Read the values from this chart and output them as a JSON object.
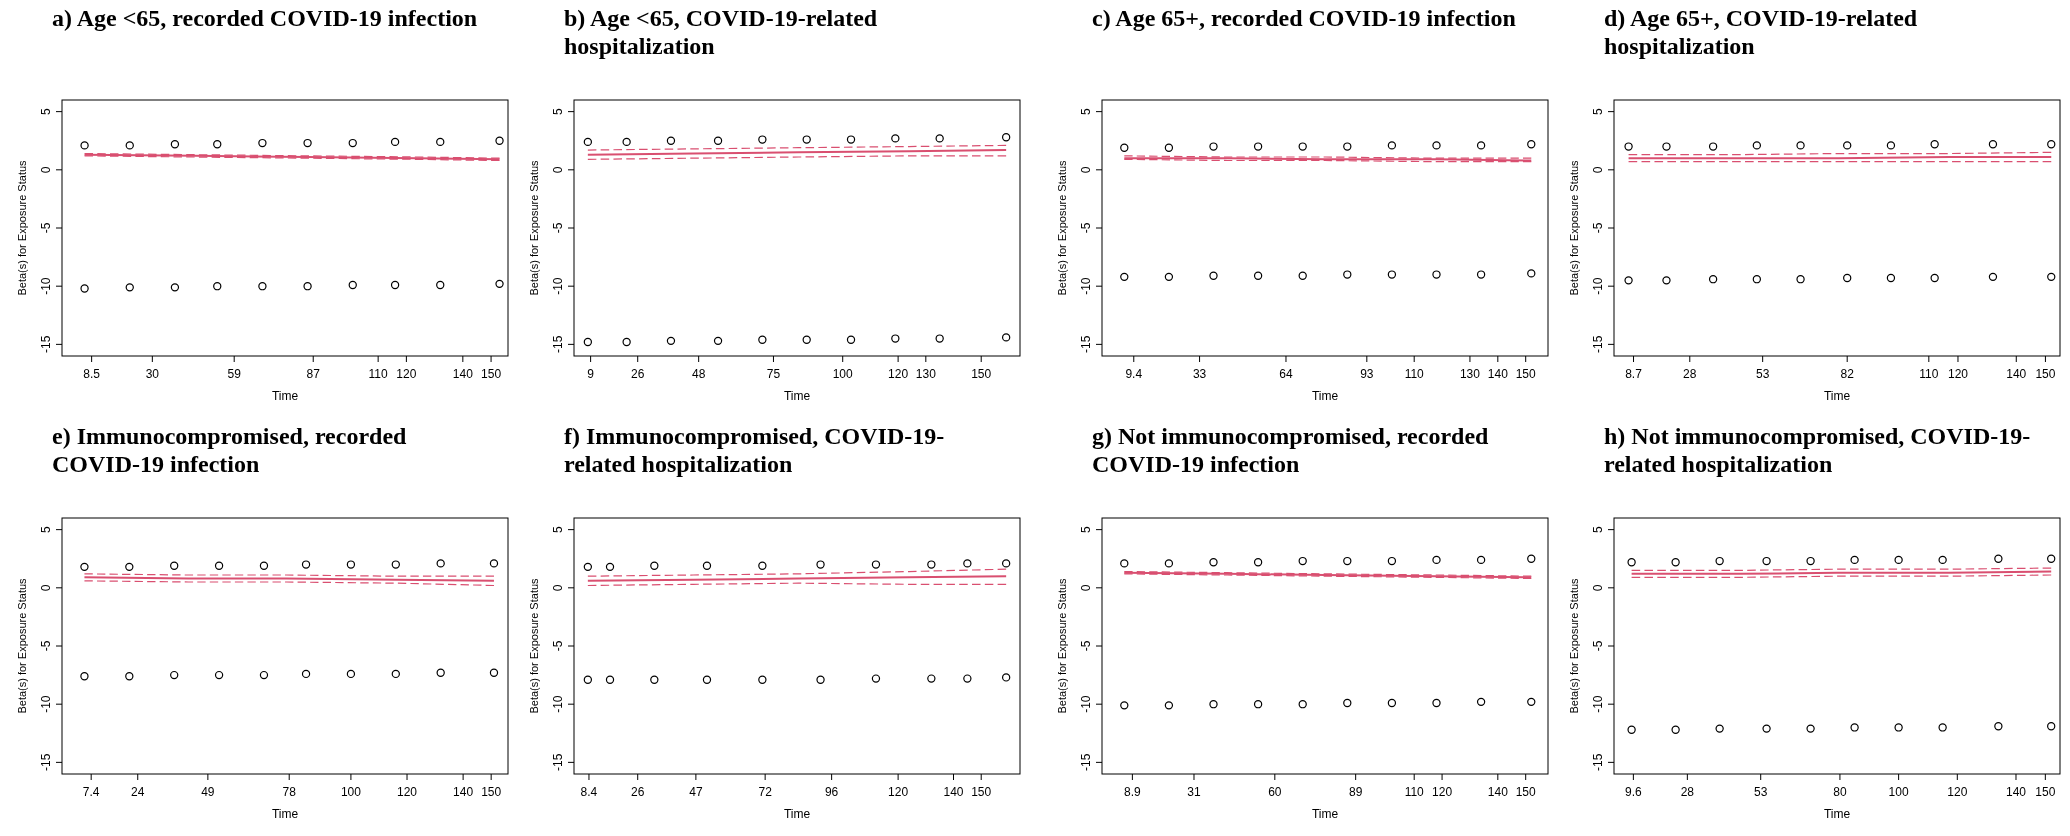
{
  "chart_data": [
    {
      "type": "scatter",
      "title": "a)  Age <65, recorded COVID-19 infection",
      "xlabel": "Time",
      "ylabel": "Beta(s) for Exposure Status",
      "xlim": [
        -2,
        156
      ],
      "ylim": [
        -16,
        6
      ],
      "yticks": [
        -15,
        -10,
        -5,
        0,
        5
      ],
      "marker": "circle",
      "xticks": [
        8.5,
        30,
        59,
        87,
        110,
        120,
        140,
        150
      ],
      "series": [
        {
          "color": "#000000",
          "x": [
            6,
            22,
            38,
            53,
            69,
            85,
            101,
            116,
            132,
            153
          ],
          "values": [
            2.1,
            2.1,
            2.2,
            2.2,
            2.3,
            2.3,
            2.3,
            2.4,
            2.4,
            2.5
          ]
        },
        {
          "color": "#000000",
          "x": [
            6,
            22,
            38,
            53,
            69,
            85,
            101,
            116,
            132,
            153
          ],
          "values": [
            -10.2,
            -10.1,
            -10.1,
            -10.0,
            -10.0,
            -10.0,
            -9.9,
            -9.9,
            -9.9,
            -9.8
          ]
        },
        {
          "type": "line",
          "color": "#d94f70",
          "line_style": "solid",
          "marker": "none",
          "x": [
            6,
            45,
            85,
            124,
            153
          ],
          "values": [
            1.3,
            1.2,
            1.1,
            1.0,
            0.9
          ]
        },
        {
          "type": "line",
          "color": "#d94f70",
          "line_style": "dashed",
          "marker": "none",
          "x": [
            6,
            45,
            85,
            124,
            153
          ],
          "values": [
            1.4,
            1.3,
            1.2,
            1.1,
            1.0
          ]
        },
        {
          "type": "line",
          "color": "#d94f70",
          "line_style": "dashed",
          "marker": "none",
          "x": [
            6,
            45,
            85,
            124,
            153
          ],
          "values": [
            1.2,
            1.1,
            1.0,
            0.9,
            0.8
          ]
        }
      ]
    },
    {
      "type": "scatter",
      "title": "b)  Age <65, COVID-19-related\nhospitalization",
      "xlabel": "Time",
      "ylabel": "Beta(s) for Exposure Status",
      "xlim": [
        3,
        164
      ],
      "ylim": [
        -16,
        6
      ],
      "yticks": [
        -15,
        -10,
        -5,
        0,
        5
      ],
      "marker": "circle",
      "xticks": [
        9,
        26,
        48,
        75,
        100,
        120,
        130,
        150
      ],
      "series": [
        {
          "color": "#000000",
          "x": [
            8,
            22,
            38,
            55,
            71,
            87,
            103,
            119,
            135,
            159
          ],
          "values": [
            2.4,
            2.4,
            2.5,
            2.5,
            2.6,
            2.6,
            2.6,
            2.7,
            2.7,
            2.8
          ]
        },
        {
          "color": "#000000",
          "x": [
            8,
            22,
            38,
            55,
            71,
            87,
            103,
            119,
            135,
            159
          ],
          "values": [
            -14.8,
            -14.8,
            -14.7,
            -14.7,
            -14.6,
            -14.6,
            -14.6,
            -14.5,
            -14.5,
            -14.4
          ]
        },
        {
          "type": "line",
          "color": "#d94f70",
          "line_style": "solid",
          "marker": "none",
          "x": [
            8,
            46,
            84,
            124,
            159
          ],
          "values": [
            1.3,
            1.4,
            1.5,
            1.6,
            1.7
          ]
        },
        {
          "type": "line",
          "color": "#d94f70",
          "line_style": "dashed",
          "marker": "none",
          "x": [
            8,
            46,
            84,
            124,
            159
          ],
          "values": [
            1.7,
            1.8,
            1.9,
            2.0,
            2.1
          ]
        },
        {
          "type": "line",
          "color": "#d94f70",
          "line_style": "dashed",
          "marker": "none",
          "x": [
            8,
            46,
            84,
            124,
            159
          ],
          "values": [
            0.9,
            1.0,
            1.1,
            1.2,
            1.2
          ]
        }
      ]
    },
    {
      "type": "scatter",
      "title": "c)  Age 65+, recorded COVID-19 infection",
      "xlabel": "Time",
      "ylabel": "Beta(s) for Exposure Status",
      "xlim": [
        -2,
        158
      ],
      "ylim": [
        -16,
        6
      ],
      "yticks": [
        -15,
        -10,
        -5,
        0,
        5
      ],
      "marker": "circle",
      "xticks": [
        9.4,
        33,
        64,
        93,
        110,
        130,
        140,
        150
      ],
      "series": [
        {
          "color": "#000000",
          "x": [
            6,
            22,
            38,
            54,
            70,
            86,
            102,
            118,
            134,
            152
          ],
          "values": [
            1.9,
            1.9,
            2.0,
            2.0,
            2.0,
            2.0,
            2.1,
            2.1,
            2.1,
            2.2
          ]
        },
        {
          "color": "#000000",
          "x": [
            6,
            22,
            38,
            54,
            70,
            86,
            102,
            118,
            134,
            152
          ],
          "values": [
            -9.2,
            -9.2,
            -9.1,
            -9.1,
            -9.1,
            -9.0,
            -9.0,
            -9.0,
            -9.0,
            -8.9
          ]
        },
        {
          "type": "line",
          "color": "#d94f70",
          "line_style": "solid",
          "marker": "none",
          "x": [
            6,
            43,
            78,
            118,
            152
          ],
          "values": [
            1.0,
            1.0,
            0.9,
            0.9,
            0.8
          ]
        },
        {
          "type": "line",
          "color": "#d94f70",
          "line_style": "dashed",
          "marker": "none",
          "x": [
            6,
            43,
            78,
            118,
            152
          ],
          "values": [
            1.2,
            1.1,
            1.1,
            1.0,
            1.0
          ]
        },
        {
          "type": "line",
          "color": "#d94f70",
          "line_style": "dashed",
          "marker": "none",
          "x": [
            6,
            43,
            78,
            118,
            152
          ],
          "values": [
            0.9,
            0.8,
            0.8,
            0.7,
            0.7
          ]
        }
      ]
    },
    {
      "type": "scatter",
      "title": "d)  Age 65+, COVID-19-related\nhospitalization",
      "xlabel": "Time",
      "ylabel": "Beta(s) for Exposure Status",
      "xlim": [
        2,
        155
      ],
      "ylim": [
        -16,
        6
      ],
      "yticks": [
        -15,
        -10,
        -5,
        0,
        5
      ],
      "marker": "circle",
      "xticks": [
        8.7,
        28,
        53,
        82,
        110,
        120,
        140,
        150
      ],
      "series": [
        {
          "color": "#000000",
          "x": [
            7,
            20,
            36,
            51,
            66,
            82,
            97,
            112,
            132,
            152
          ],
          "values": [
            2.0,
            2.0,
            2.0,
            2.1,
            2.1,
            2.1,
            2.1,
            2.2,
            2.2,
            2.2
          ]
        },
        {
          "color": "#000000",
          "x": [
            7,
            20,
            36,
            51,
            66,
            82,
            97,
            112,
            132,
            152
          ],
          "values": [
            -9.5,
            -9.5,
            -9.4,
            -9.4,
            -9.4,
            -9.3,
            -9.3,
            -9.3,
            -9.2,
            -9.2
          ]
        },
        {
          "type": "line",
          "color": "#d94f70",
          "line_style": "solid",
          "marker": "none",
          "x": [
            7,
            43,
            79,
            117,
            152
          ],
          "values": [
            1.0,
            1.0,
            1.0,
            1.1,
            1.1
          ]
        },
        {
          "type": "line",
          "color": "#d94f70",
          "line_style": "dashed",
          "marker": "none",
          "x": [
            7,
            43,
            79,
            117,
            152
          ],
          "values": [
            1.3,
            1.3,
            1.4,
            1.4,
            1.5
          ]
        },
        {
          "type": "line",
          "color": "#d94f70",
          "line_style": "dashed",
          "marker": "none",
          "x": [
            7,
            43,
            79,
            117,
            152
          ],
          "values": [
            0.7,
            0.7,
            0.7,
            0.7,
            0.7
          ]
        }
      ]
    },
    {
      "type": "scatter",
      "title": "e)  Immunocompromised, recorded\nCOVID-19 infection",
      "xlabel": "Time",
      "ylabel": "Beta(s) for Exposure Status",
      "xlim": [
        -3,
        156
      ],
      "ylim": [
        -16,
        6
      ],
      "yticks": [
        -15,
        -10,
        -5,
        0,
        5
      ],
      "marker": "circle",
      "xticks": [
        7.4,
        24,
        49,
        78,
        100,
        120,
        140,
        150
      ],
      "series": [
        {
          "color": "#000000",
          "x": [
            5,
            21,
            37,
            53,
            69,
            84,
            100,
            116,
            132,
            151
          ],
          "values": [
            1.8,
            1.8,
            1.9,
            1.9,
            1.9,
            2.0,
            2.0,
            2.0,
            2.1,
            2.1
          ]
        },
        {
          "color": "#000000",
          "x": [
            5,
            21,
            37,
            53,
            69,
            84,
            100,
            116,
            132,
            151
          ],
          "values": [
            -7.6,
            -7.6,
            -7.5,
            -7.5,
            -7.5,
            -7.4,
            -7.4,
            -7.4,
            -7.3,
            -7.3
          ]
        },
        {
          "type": "line",
          "color": "#d94f70",
          "line_style": "solid",
          "marker": "none",
          "x": [
            5,
            42,
            77,
            116,
            151
          ],
          "values": [
            0.9,
            0.8,
            0.8,
            0.7,
            0.6
          ]
        },
        {
          "type": "line",
          "color": "#d94f70",
          "line_style": "dashed",
          "marker": "none",
          "x": [
            5,
            42,
            77,
            116,
            151
          ],
          "values": [
            1.2,
            1.1,
            1.1,
            1.0,
            1.0
          ]
        },
        {
          "type": "line",
          "color": "#d94f70",
          "line_style": "dashed",
          "marker": "none",
          "x": [
            5,
            42,
            77,
            116,
            151
          ],
          "values": [
            0.6,
            0.5,
            0.5,
            0.4,
            0.2
          ]
        }
      ]
    },
    {
      "type": "scatter",
      "title": "f)  Immunocompromised, COVID-19-\nrelated hospitalization",
      "xlabel": "Time",
      "ylabel": "Beta(s) for Exposure Status",
      "xlim": [
        3,
        164
      ],
      "ylim": [
        -16,
        6
      ],
      "yticks": [
        -15,
        -10,
        -5,
        0,
        5
      ],
      "marker": "circle",
      "xticks": [
        8.4,
        26,
        47,
        72,
        96,
        120,
        140,
        150
      ],
      "series": [
        {
          "color": "#000000",
          "x": [
            8,
            16,
            32,
            51,
            71,
            92,
            112,
            132,
            145,
            159
          ],
          "values": [
            1.8,
            1.8,
            1.9,
            1.9,
            1.9,
            2.0,
            2.0,
            2.0,
            2.1,
            2.1
          ]
        },
        {
          "color": "#000000",
          "x": [
            8,
            16,
            32,
            51,
            71,
            92,
            112,
            132,
            145,
            159
          ],
          "values": [
            -7.9,
            -7.9,
            -7.9,
            -7.9,
            -7.9,
            -7.9,
            -7.8,
            -7.8,
            -7.8,
            -7.7
          ]
        },
        {
          "type": "line",
          "color": "#d94f70",
          "line_style": "solid",
          "marker": "none",
          "x": [
            8,
            46,
            84,
            124,
            159
          ],
          "values": [
            0.6,
            0.7,
            0.8,
            0.9,
            1.0
          ]
        },
        {
          "type": "line",
          "color": "#d94f70",
          "line_style": "dashed",
          "marker": "none",
          "x": [
            8,
            46,
            84,
            124,
            159
          ],
          "values": [
            1.0,
            1.1,
            1.2,
            1.4,
            1.6
          ]
        },
        {
          "type": "line",
          "color": "#d94f70",
          "line_style": "dashed",
          "marker": "none",
          "x": [
            8,
            46,
            84,
            124,
            159
          ],
          "values": [
            0.2,
            0.3,
            0.4,
            0.3,
            0.3
          ]
        }
      ]
    },
    {
      "type": "scatter",
      "title": "g)  Not immunocompromised, recorded\nCOVID-19 infection",
      "xlabel": "Time",
      "ylabel": "Beta(s) for Exposure Status",
      "xlim": [
        -2,
        158
      ],
      "ylim": [
        -16,
        6
      ],
      "yticks": [
        -15,
        -10,
        -5,
        0,
        5
      ],
      "marker": "circle",
      "xticks": [
        8.9,
        31,
        60,
        89,
        110,
        120,
        140,
        150
      ],
      "series": [
        {
          "color": "#000000",
          "x": [
            6,
            22,
            38,
            54,
            70,
            86,
            102,
            118,
            134,
            152
          ],
          "values": [
            2.1,
            2.1,
            2.2,
            2.2,
            2.3,
            2.3,
            2.3,
            2.4,
            2.4,
            2.5
          ]
        },
        {
          "color": "#000000",
          "x": [
            6,
            22,
            38,
            54,
            70,
            86,
            102,
            118,
            134,
            152
          ],
          "values": [
            -10.1,
            -10.1,
            -10.0,
            -10.0,
            -10.0,
            -9.9,
            -9.9,
            -9.9,
            -9.8,
            -9.8
          ]
        },
        {
          "type": "line",
          "color": "#d94f70",
          "line_style": "solid",
          "marker": "none",
          "x": [
            6,
            43,
            78,
            118,
            152
          ],
          "values": [
            1.3,
            1.2,
            1.1,
            1.0,
            0.9
          ]
        },
        {
          "type": "line",
          "color": "#d94f70",
          "line_style": "dashed",
          "marker": "none",
          "x": [
            6,
            43,
            78,
            118,
            152
          ],
          "values": [
            1.4,
            1.3,
            1.2,
            1.1,
            1.0
          ]
        },
        {
          "type": "line",
          "color": "#d94f70",
          "line_style": "dashed",
          "marker": "none",
          "x": [
            6,
            43,
            78,
            118,
            152
          ],
          "values": [
            1.2,
            1.1,
            1.0,
            0.9,
            0.8
          ]
        }
      ]
    },
    {
      "type": "scatter",
      "title": "h)  Not immunocompromised, COVID-19-\nrelated hospitalization",
      "xlabel": "Time",
      "ylabel": "Beta(s) for Exposure Status",
      "xlim": [
        3,
        155
      ],
      "ylim": [
        -16,
        6
      ],
      "yticks": [
        -15,
        -10,
        -5,
        0,
        5
      ],
      "marker": "circle",
      "xticks": [
        9.6,
        28,
        53,
        80,
        100,
        120,
        140,
        150
      ],
      "series": [
        {
          "color": "#000000",
          "x": [
            9,
            24,
            39,
            55,
            70,
            85,
            100,
            115,
            134,
            152
          ],
          "values": [
            2.2,
            2.2,
            2.3,
            2.3,
            2.3,
            2.4,
            2.4,
            2.4,
            2.5,
            2.5
          ]
        },
        {
          "color": "#000000",
          "x": [
            9,
            24,
            39,
            55,
            70,
            85,
            100,
            115,
            134,
            152
          ],
          "values": [
            -12.2,
            -12.2,
            -12.1,
            -12.1,
            -12.1,
            -12.0,
            -12.0,
            -12.0,
            -11.9,
            -11.9
          ]
        },
        {
          "type": "line",
          "color": "#d94f70",
          "line_style": "solid",
          "marker": "none",
          "x": [
            9,
            46,
            79,
            117,
            152
          ],
          "values": [
            1.2,
            1.2,
            1.3,
            1.3,
            1.4
          ]
        },
        {
          "type": "line",
          "color": "#d94f70",
          "line_style": "dashed",
          "marker": "none",
          "x": [
            9,
            46,
            79,
            117,
            152
          ],
          "values": [
            1.5,
            1.5,
            1.6,
            1.6,
            1.7
          ]
        },
        {
          "type": "line",
          "color": "#d94f70",
          "line_style": "dashed",
          "marker": "none",
          "x": [
            9,
            46,
            79,
            117,
            152
          ],
          "values": [
            0.9,
            0.9,
            1.0,
            1.0,
            1.1
          ]
        }
      ]
    }
  ]
}
